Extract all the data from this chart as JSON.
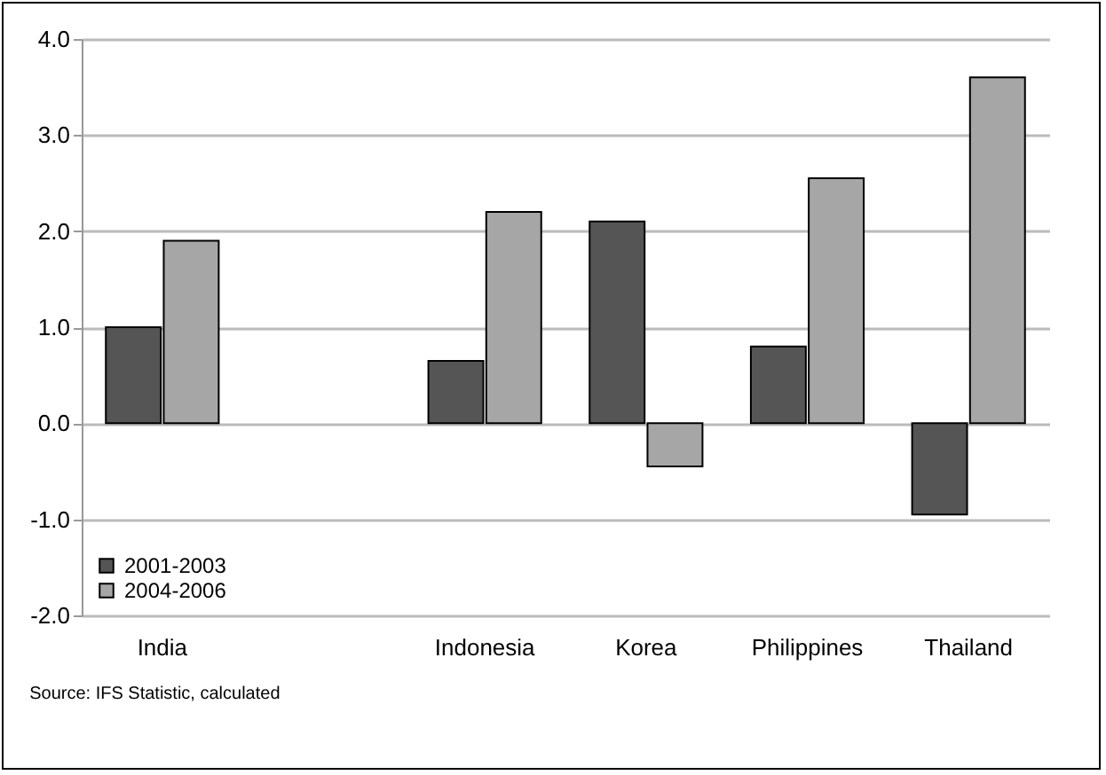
{
  "chart_data": {
    "type": "bar",
    "categories": [
      "India",
      null,
      "Indonesia",
      "Korea",
      "Philippines",
      "Thailand"
    ],
    "series": [
      {
        "name": "2001-2003",
        "color": "#555555",
        "values": [
          1.0,
          null,
          0.65,
          2.1,
          0.8,
          -0.95
        ]
      },
      {
        "name": "2004-2006",
        "color": "#a6a6a6",
        "values": [
          1.9,
          null,
          2.2,
          -0.45,
          2.55,
          3.6
        ]
      }
    ],
    "ylim": [
      -2,
      4
    ],
    "yticks": [
      {
        "value": -2,
        "label": "-2.0"
      },
      {
        "value": -1,
        "label": "-1.0"
      },
      {
        "value": 0,
        "label": "0.0"
      },
      {
        "value": 1,
        "label": "1.0"
      },
      {
        "value": 2,
        "label": "2.0"
      },
      {
        "value": 3,
        "label": "3.0"
      },
      {
        "value": 4,
        "label": "4.0"
      }
    ],
    "grid": "y",
    "legend": "bottom left",
    "annotations": [
      "Source: IFS Statistic, calculated"
    ]
  }
}
